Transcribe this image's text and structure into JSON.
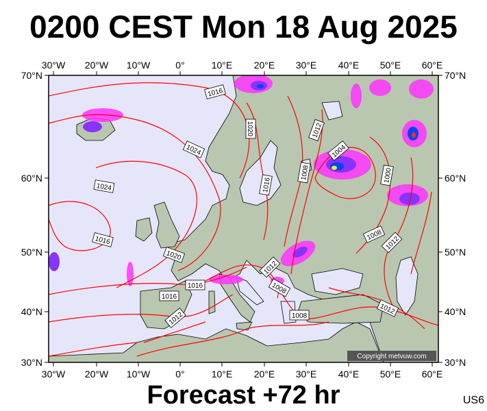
{
  "title": "0200 CEST Mon 18 Aug 2025",
  "subtitle": "Forecast +72 hr",
  "model": "US6",
  "copyright": "Copyright metvuw.com",
  "axes": {
    "lon_labels": [
      "30°W",
      "20°W",
      "10°W",
      "0°",
      "10°E",
      "20°E",
      "30°E",
      "40°E",
      "50°E",
      "60°E"
    ],
    "lat_labels_left": [
      "70°N",
      "60°N",
      "50°N",
      "40°N",
      "30°N"
    ],
    "lat_labels_right": [
      "70°N",
      "60°N",
      "50°N",
      "40°N",
      "30°N"
    ]
  },
  "isobar_labels": [
    "1016",
    "1020",
    "1012",
    "1024",
    "1004",
    "1024",
    "1008",
    "1016",
    "1000",
    "1016",
    "1008",
    "1012",
    "1020",
    "1012",
    "1016",
    "1008",
    "1016",
    "1012",
    "1008",
    "1012"
  ],
  "colors": {
    "ocean": "#e6e6fa",
    "land": "#b9c7b0",
    "isobar": "#ff0000",
    "coast": "#000000",
    "rain_light": "#ff33ff",
    "rain_mid": "#8833ff",
    "rain_heavy": "#0044ff"
  }
}
